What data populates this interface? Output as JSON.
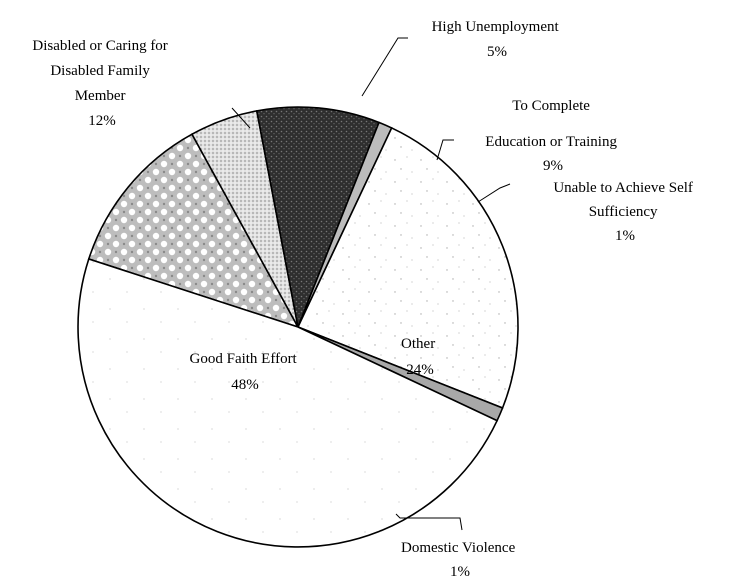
{
  "chart_data": {
    "type": "pie",
    "title": "",
    "slices": [
      {
        "key": "disabled",
        "lines": [
          "Disabled or Caring for",
          "Disabled Family",
          "Member"
        ],
        "pct_label": "12%",
        "value": 12,
        "color": "#c4c4c4",
        "pattern": "mottled"
      },
      {
        "key": "high_unemp",
        "lines": [
          "High Unemployment"
        ],
        "pct_label": "5%",
        "value": 5,
        "color": "#d0d0d0",
        "pattern": "dots-light"
      },
      {
        "key": "education",
        "lines": [
          "To Complete",
          "Education or Training"
        ],
        "pct_label": "9%",
        "value": 9,
        "color": "#4a4a4a",
        "pattern": "dark"
      },
      {
        "key": "self_suff",
        "lines": [
          "Unable to Achieve Self",
          "Sufficiency"
        ],
        "pct_label": "1%",
        "value": 1,
        "color": "#bcbcbc",
        "pattern": "solid"
      },
      {
        "key": "other",
        "lines": [
          "Other"
        ],
        "pct_label": "24%",
        "value": 24,
        "color": "#ffffff",
        "pattern": "speckle"
      },
      {
        "key": "domestic",
        "lines": [
          "Domestic Violence"
        ],
        "pct_label": "1%",
        "value": 1,
        "color": "#a8a8a8",
        "pattern": "solid"
      },
      {
        "key": "good_faith",
        "lines": [
          "Good Faith Effort"
        ],
        "pct_label": "48%",
        "value": 48,
        "color": "#ffffff",
        "pattern": "speckle-fine"
      }
    ]
  }
}
